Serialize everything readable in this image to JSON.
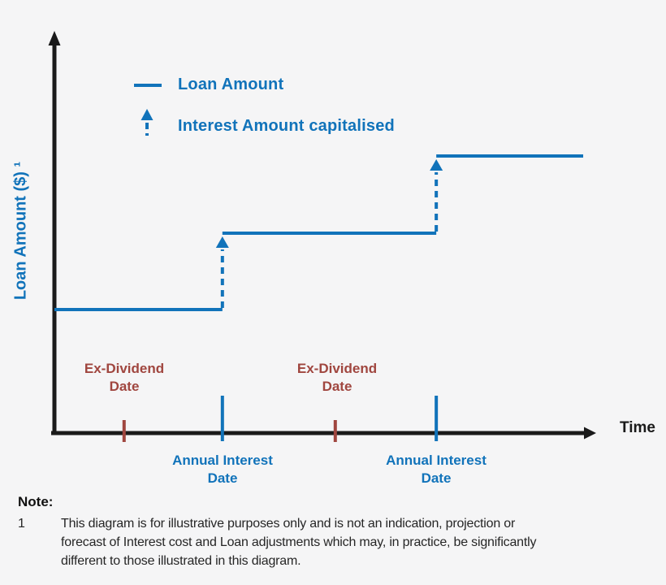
{
  "colors": {
    "blue": "#1173BA",
    "red": "#A0463F",
    "axis": "#1A1A1A",
    "background": "#F5F5F6",
    "note_text": "#262626"
  },
  "legend": {
    "items": [
      {
        "label": "Loan Amount",
        "marker": "solid-line"
      },
      {
        "label": "Interest Amount capitalised",
        "marker": "dashed-up-arrow"
      }
    ]
  },
  "chart_data": {
    "type": "line",
    "subtype": "step",
    "title": "",
    "xlabel": "Time",
    "ylabel": "Loan Amount ($) ¹",
    "x_axis_numeric": false,
    "y_axis_numeric": false,
    "grid": false,
    "legend_position": "top-left-inside",
    "series": [
      {
        "name": "Loan Amount",
        "style": "solid",
        "levels": [
          {
            "x_from": 0.0,
            "x_to": 0.311,
            "y": 0.307
          },
          {
            "x_from": 0.311,
            "x_to": 0.707,
            "y": 0.497
          },
          {
            "x_from": 0.707,
            "x_to": 0.979,
            "y": 0.689
          }
        ]
      }
    ],
    "capitalisation_arrows": [
      {
        "name": "Interest Amount capitalised",
        "x": 0.311,
        "y_from": 0.307,
        "y_to": 0.497
      },
      {
        "name": "Interest Amount capitalised",
        "x": 0.707,
        "y_from": 0.497,
        "y_to": 0.689
      }
    ],
    "x_events": [
      {
        "label": "Ex-Dividend Date",
        "x": 0.129,
        "tick_color": "#A0463F",
        "tick_size": "small"
      },
      {
        "label": "Annual Interest Date",
        "x": 0.311,
        "tick_color": "#1173BA",
        "tick_size": "large"
      },
      {
        "label": "Ex-Dividend Date",
        "x": 0.52,
        "tick_color": "#A0463F",
        "tick_size": "small"
      },
      {
        "label": "Annual Interest Date",
        "x": 0.707,
        "tick_color": "#1173BA",
        "tick_size": "large"
      }
    ]
  },
  "note": {
    "heading": "Note:",
    "number": "1",
    "lines": [
      "This diagram is for illustrative purposes only and is not an indication, projection or",
      "forecast of Interest cost and Loan adjustments which may, in practice, be significantly",
      "different to those illustrated in this diagram."
    ]
  }
}
